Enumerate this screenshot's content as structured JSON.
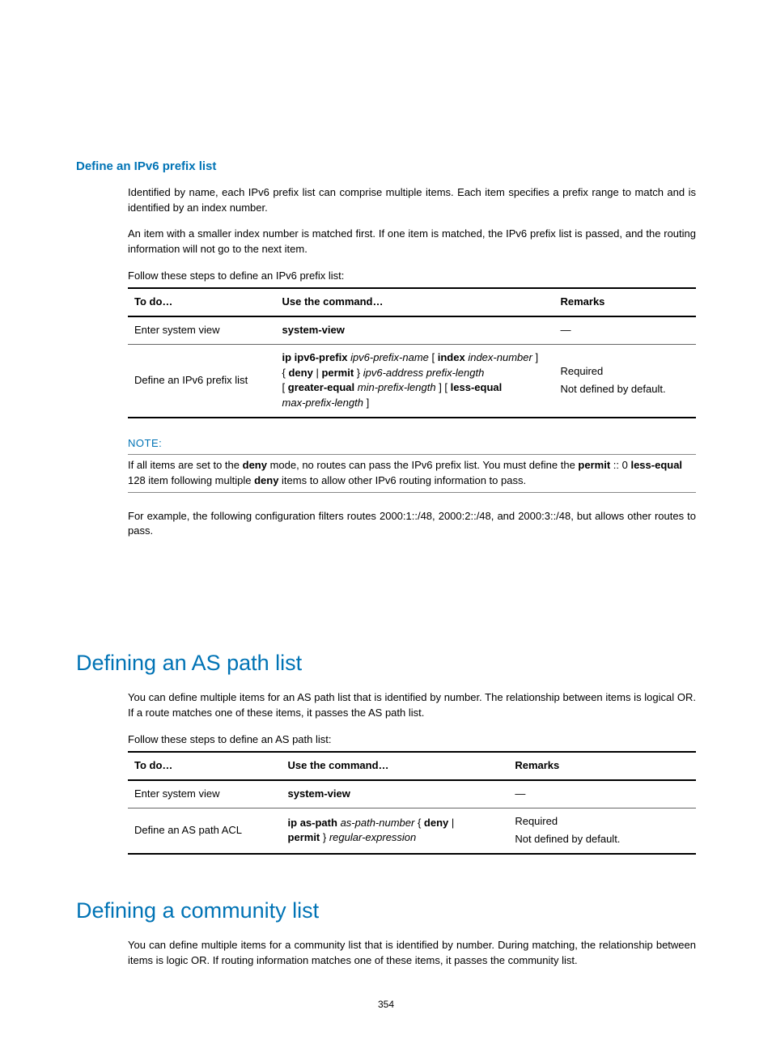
{
  "colors": {
    "accent": "#0073b5",
    "border": "#666",
    "borderHeavy": "#000"
  },
  "section_ipv6": {
    "heading": "Define an IPv6 prefix list",
    "para1": "Identified by name, each IPv6 prefix list can comprise multiple items. Each item specifies a prefix range to match and is identified by an index number.",
    "para2": "An item with a smaller index number is matched first. If one item is matched, the IPv6 prefix list is passed, and the routing information will not go to the next item.",
    "intro": "Follow these steps to define an IPv6 prefix list:",
    "table": {
      "headers": [
        "To do…",
        "Use the command…",
        "Remarks"
      ],
      "col_widths": [
        "26%",
        "49%",
        "25%"
      ],
      "rows": [
        {
          "todo": "Enter system view",
          "cmd_html": "<span class='b'>system-view</span>",
          "remarks_html": "—"
        },
        {
          "todo": "Define an IPv6 prefix list",
          "cmd_html": "<span class='b'>ip ipv6-prefix</span> <span class='i'>ipv6-prefix-name</span> [ <span class='b'>index</span> <span class='i'>index-number</span> ]<br>{ <span class='b'>deny</span> | <span class='b'>permit</span> } <span class='i'>ipv6-address prefix-length</span><br>[ <span class='b'>greater-equal</span> <span class='i'>min-prefix-length</span> ] [ <span class='b'>less-equal</span><br><span class='i'>max-prefix-length</span> ]",
          "remarks_html": "<div class='remarks-2'><div>Required</div><div>Not defined by default.</div></div>"
        }
      ]
    },
    "note": {
      "label": "NOTE:",
      "body_html": "If all items are set to the <span class='b'>deny</span> mode, no routes can pass the IPv6 prefix list. You must define the <span class='b'>permit</span> :: 0 <span class='b'>less-equal</span> 128 item following multiple <span class='b'>deny</span> items to allow other IPv6 routing information to pass."
    },
    "example": "For example, the following configuration filters routes 2000:1::/48, 2000:2::/48, and 2000:3::/48, but allows other routes to pass."
  },
  "section_aspath": {
    "heading": "Defining an AS path list",
    "para1": "You can define multiple items for an AS path list that is identified by number. The relationship between items is logical OR. If a route matches one of these items, it passes the AS path list.",
    "intro": "Follow these steps to define an AS path list:",
    "table": {
      "headers": [
        "To do…",
        "Use the command…",
        "Remarks"
      ],
      "col_widths": [
        "27%",
        "40%",
        "33%"
      ],
      "rows": [
        {
          "todo": "Enter system view",
          "cmd_html": "<span class='b'>system-view</span>",
          "remarks_html": "—"
        },
        {
          "todo": "Define an AS path ACL",
          "cmd_html": "<span class='b'>ip as-path</span> <span class='i'>as-path-number</span> { <span class='b'>deny</span> |<br><span class='b'>permit</span> } <span class='i'>regular-expression</span>",
          "remarks_html": "<div class='remarks-2'><div>Required</div><div>Not defined by default.</div></div>"
        }
      ]
    }
  },
  "section_community": {
    "heading": "Defining a community list",
    "para1": "You can define multiple items for a community list that is identified by number. During matching, the relationship between items is logic OR. If routing information matches one of these items, it passes the community list."
  },
  "page_number": "354"
}
